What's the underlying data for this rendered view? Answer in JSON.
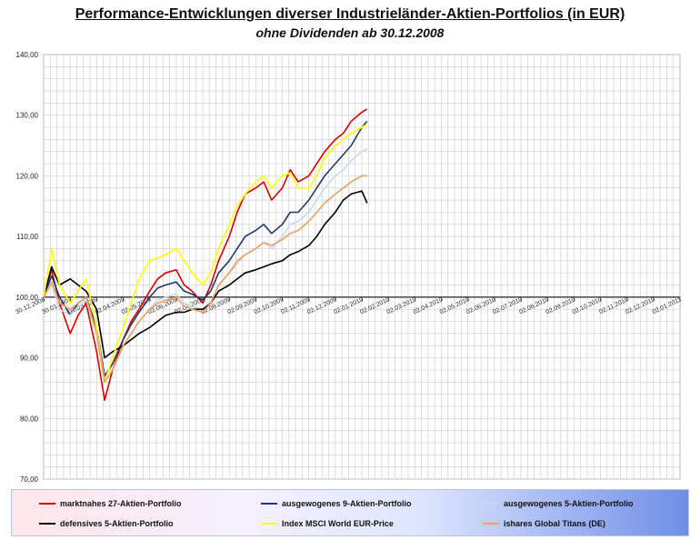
{
  "title": "Performance-Entwicklungen diverser Industrieländer-Aktien-Portfolios (in EUR)",
  "subtitle": "ohne Dividenden ab 30.12.2008",
  "chart_data": {
    "type": "line",
    "ylim": [
      70,
      140
    ],
    "y_ticks": [
      "70,00",
      "80,00",
      "90,00",
      "100,00",
      "110,00",
      "120,00",
      "130,00",
      "140,00"
    ],
    "x_ticks": [
      "30.12.2008",
      "30.01.2009",
      "02.03.2009",
      "02.04.2009",
      "02.05.2009",
      "02.06.2009",
      "02.07.2009",
      "02.08.2009",
      "02.09.2009",
      "02.10.2009",
      "02.11.2009",
      "02.12.2009",
      "02.01.2010",
      "02.02.2010",
      "02.03.2010",
      "02.04.2010",
      "02.05.2010",
      "02.06.2010",
      "02.07.2010",
      "02.08.2010",
      "02.09.2010",
      "02.10.2010",
      "02.11.2010",
      "02.12.2010",
      "02.01.2011"
    ],
    "baseline": 100,
    "grid": true,
    "legend_position": "bottom",
    "series": [
      {
        "name": "marktnahes 27-Aktien-Portfolio",
        "color": "#e00000",
        "x": [
          0,
          0.3,
          0.6,
          1,
          1.3,
          1.6,
          2,
          2.3,
          2.6,
          3,
          3.3,
          3.6,
          4,
          4.3,
          4.6,
          5,
          5.3,
          5.6,
          6,
          6.3,
          6.6,
          7,
          7.3,
          7.6,
          8,
          8.3,
          8.6,
          9,
          9.3,
          9.6,
          10,
          10.3,
          10.6,
          11,
          11.3,
          11.6,
          12,
          12.2
        ],
        "values": [
          100,
          104.5,
          99,
          94,
          97,
          99,
          91,
          83,
          88,
          93,
          96,
          98,
          101,
          103,
          104,
          104.5,
          102,
          101,
          99,
          102,
          106,
          110,
          114,
          117,
          118,
          119,
          116,
          118,
          121,
          119,
          120,
          122,
          124,
          126,
          127,
          129,
          130.5,
          131
        ]
      },
      {
        "name": "ausgewogenes 9-Aktien-Portfolio",
        "color": "#1f3a6b",
        "x": [
          0,
          0.3,
          0.6,
          1,
          1.3,
          1.6,
          2,
          2.3,
          2.6,
          3,
          3.3,
          3.6,
          4,
          4.3,
          4.6,
          5,
          5.3,
          5.6,
          6,
          6.3,
          6.6,
          7,
          7.3,
          7.6,
          8,
          8.3,
          8.6,
          9,
          9.3,
          9.6,
          10,
          10.3,
          10.6,
          11,
          11.3,
          11.6,
          12,
          12.2
        ],
        "values": [
          100,
          103.5,
          100,
          97,
          99,
          100,
          95,
          87,
          89,
          93,
          95.5,
          97.5,
          100,
          101.5,
          102,
          102.5,
          101,
          100.5,
          99.5,
          101,
          104,
          106,
          108,
          110,
          111,
          112,
          110.5,
          112,
          114,
          114,
          116,
          118,
          120,
          122,
          123.5,
          125,
          128,
          129
        ]
      },
      {
        "name": "ausgewogenes 5-Aktien-Portfolio",
        "color": "#c8d8ee",
        "x": [
          0,
          0.3,
          0.6,
          1,
          1.3,
          1.6,
          2,
          2.3,
          2.6,
          3,
          3.3,
          3.6,
          4,
          4.3,
          4.6,
          5,
          5.3,
          5.6,
          6,
          6.3,
          6.6,
          7,
          7.3,
          7.6,
          8,
          8.3,
          8.6,
          9,
          9.3,
          9.6,
          10,
          10.3,
          10.6,
          11,
          11.3,
          11.6,
          12,
          12.2
        ],
        "values": [
          100,
          102,
          98,
          97,
          98.5,
          99.5,
          94,
          86,
          88,
          92,
          94,
          96,
          98,
          99.5,
          100,
          100.5,
          99,
          98.5,
          98,
          99,
          102,
          104,
          105.5,
          107,
          108,
          109,
          108,
          110,
          112,
          112.5,
          114,
          116,
          118,
          120,
          121,
          122.5,
          124,
          124.5
        ]
      },
      {
        "name": "defensives 5-Aktien-Portfolio",
        "color": "#000000",
        "x": [
          0,
          0.3,
          0.6,
          1,
          1.3,
          1.6,
          2,
          2.3,
          2.6,
          3,
          3.3,
          3.6,
          4,
          4.3,
          4.6,
          5,
          5.3,
          5.6,
          6,
          6.3,
          6.6,
          7,
          7.3,
          7.6,
          8,
          8.3,
          8.6,
          9,
          9.3,
          9.6,
          10,
          10.3,
          10.6,
          11,
          11.3,
          11.6,
          12,
          12.2
        ],
        "values": [
          100,
          105,
          102,
          103,
          102,
          101,
          98,
          90,
          91,
          92,
          93,
          94,
          95,
          96,
          97,
          97.5,
          97.5,
          98,
          98,
          99,
          101,
          102,
          103,
          104,
          104.5,
          105,
          105.5,
          106,
          107,
          107.5,
          108.5,
          110,
          112,
          114,
          116,
          117,
          117.5,
          115.5
        ]
      },
      {
        "name": "Index MSCI World EUR-Price",
        "color": "#ffff00",
        "x": [
          0,
          0.3,
          0.6,
          1,
          1.3,
          1.6,
          2,
          2.3,
          2.6,
          3,
          3.3,
          3.6,
          4,
          4.3,
          4.6,
          5,
          5.3,
          5.6,
          6,
          6.3,
          6.6,
          7,
          7.3,
          7.6,
          8,
          8.3,
          8.6,
          9,
          9.3,
          9.6,
          10,
          10.3,
          10.6,
          11,
          11.3,
          11.6,
          12,
          12.2
        ],
        "values": [
          100,
          108,
          102,
          99,
          101,
          103,
          95,
          86,
          90,
          95,
          99,
          103,
          106,
          106.5,
          107,
          108,
          106,
          104,
          102,
          104,
          108,
          112,
          115,
          117,
          119,
          120,
          118,
          120,
          120.5,
          118,
          118,
          120,
          123,
          125,
          126,
          127,
          128,
          128.5
        ]
      },
      {
        "name": "ishares Global Titans (DE)",
        "color": "#f0a060",
        "x": [
          0,
          0.3,
          0.6,
          1,
          1.3,
          1.6,
          2,
          2.3,
          2.6,
          3,
          3.3,
          3.6,
          4,
          4.3,
          4.6,
          5,
          5.3,
          5.6,
          6,
          6.3,
          6.6,
          7,
          7.3,
          7.6,
          8,
          8.3,
          8.6,
          9,
          9.3,
          9.6,
          10,
          10.3,
          10.6,
          11,
          11.3,
          11.6,
          12,
          12.2
        ],
        "values": [
          100,
          102.5,
          99,
          98,
          99,
          100,
          94,
          86,
          88,
          92,
          94,
          96,
          98,
          99,
          99.5,
          100,
          98.5,
          98,
          97.5,
          99,
          102,
          104,
          106,
          107,
          108,
          109,
          108.5,
          109.5,
          110.5,
          111,
          112.5,
          114,
          115.5,
          117,
          118,
          119,
          120,
          120
        ]
      }
    ]
  }
}
